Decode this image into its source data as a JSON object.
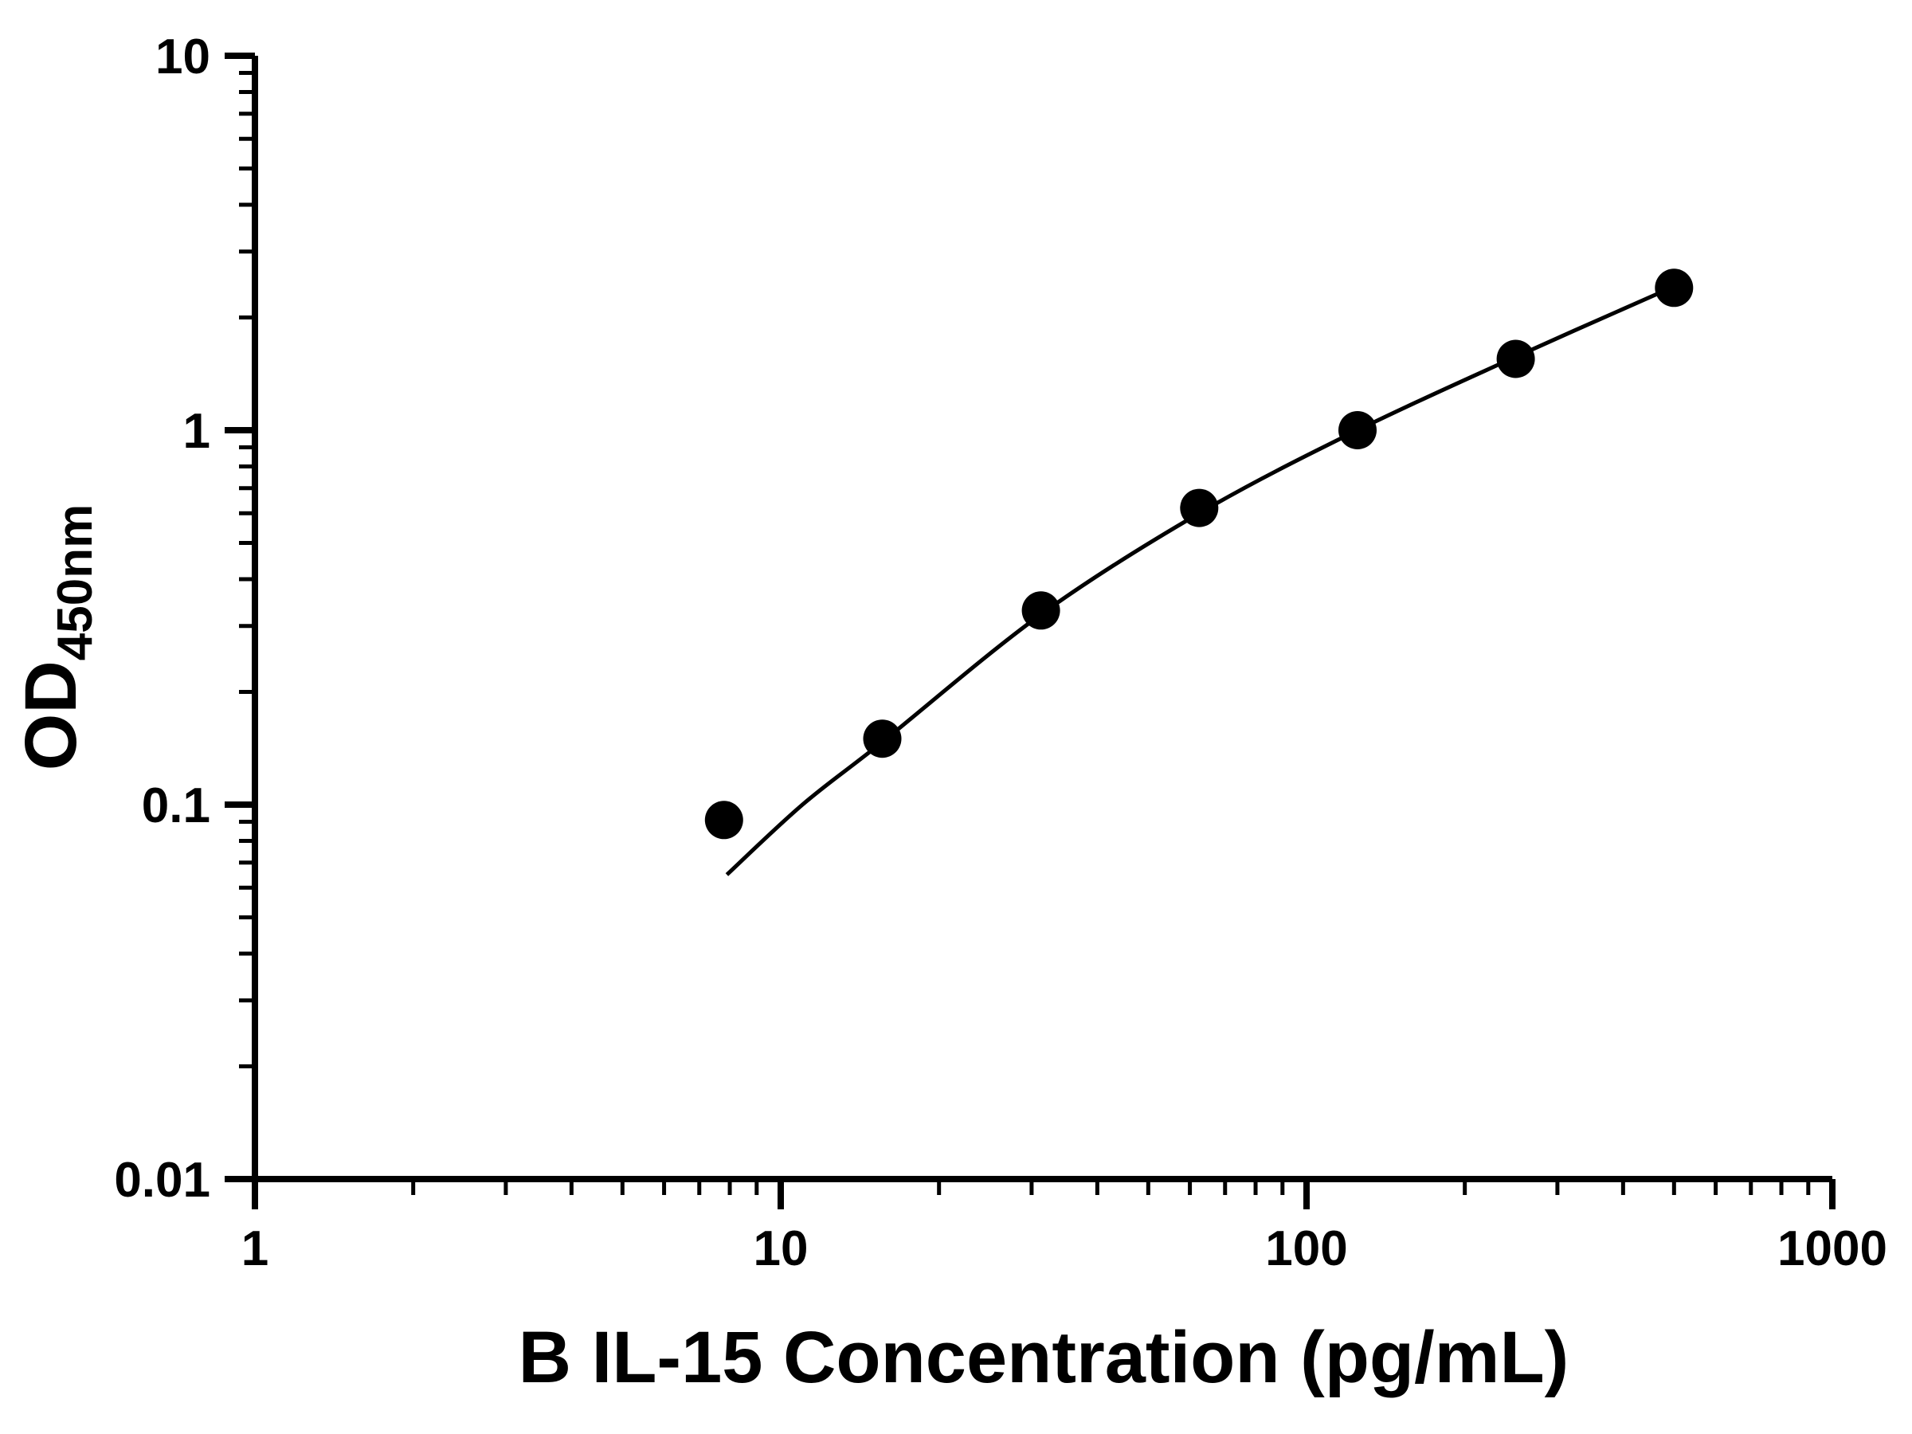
{
  "chart_data": {
    "type": "scatter",
    "title": "",
    "xlabel": "B IL-15 Concentration (pg/mL)",
    "ylabel": "OD450nm",
    "ylabel_base": "OD",
    "ylabel_sub": "450nm",
    "x_scale": "log",
    "y_scale": "log",
    "xlim": [
      1,
      1000
    ],
    "ylim": [
      0.01,
      10
    ],
    "grid": false,
    "legend": "none",
    "axis_color": "#000000",
    "background_color": "#ffffff",
    "x_ticks": [
      {
        "value": 1,
        "label": "1"
      },
      {
        "value": 10,
        "label": "10"
      },
      {
        "value": 100,
        "label": "100"
      },
      {
        "value": 1000,
        "label": "1000"
      }
    ],
    "y_ticks": [
      {
        "value": 0.01,
        "label": "0.01"
      },
      {
        "value": 0.1,
        "label": "0.1"
      },
      {
        "value": 1,
        "label": "1"
      },
      {
        "value": 10,
        "label": "10"
      }
    ],
    "marker": {
      "shape": "circle",
      "color": "#000000",
      "radius": 24
    },
    "line": {
      "color": "#000000",
      "width": 5
    },
    "points": [
      {
        "x": 7.8,
        "y": 0.091
      },
      {
        "x": 15.6,
        "y": 0.15
      },
      {
        "x": 31.25,
        "y": 0.33
      },
      {
        "x": 62.5,
        "y": 0.62
      },
      {
        "x": 125,
        "y": 1.0
      },
      {
        "x": 250,
        "y": 1.55
      },
      {
        "x": 500,
        "y": 2.4
      }
    ],
    "fit_curve": [
      {
        "x": 7.9,
        "y": 0.065
      },
      {
        "x": 11,
        "y": 0.1
      },
      {
        "x": 15.6,
        "y": 0.147
      },
      {
        "x": 31.25,
        "y": 0.322
      },
      {
        "x": 62.5,
        "y": 0.6
      },
      {
        "x": 125,
        "y": 1.0
      },
      {
        "x": 250,
        "y": 1.57
      },
      {
        "x": 500,
        "y": 2.42
      }
    ]
  }
}
